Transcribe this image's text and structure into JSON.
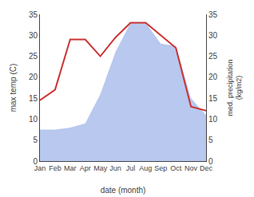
{
  "chart_data": {
    "type": "line",
    "xlabel": "date (month)",
    "ylabel": "max temp (C)",
    "y2label": "med. precipitation\n(kg/m2)",
    "categories": [
      "Jan",
      "Feb",
      "Mar",
      "Apr",
      "May",
      "Jun",
      "Jul",
      "Aug",
      "Sep",
      "Oct",
      "Nov",
      "Dec"
    ],
    "series": [
      {
        "type": "area",
        "axis": "y2",
        "color": "#b8c8ee",
        "values": [
          7.5,
          7.5,
          8.0,
          9.0,
          16.0,
          26.0,
          33.0,
          33.0,
          28.0,
          27.5,
          15.0,
          11.0
        ]
      },
      {
        "type": "line",
        "axis": "y",
        "color": "#cc3333",
        "values": [
          14.5,
          17.0,
          29.0,
          29.0,
          25.0,
          29.5,
          33.0,
          33.0,
          30.0,
          27.0,
          13.0,
          12.0
        ]
      }
    ],
    "ylim": [
      0,
      35
    ],
    "yticks": [
      0,
      5,
      10,
      15,
      20,
      25,
      30,
      35
    ],
    "y2lim": [
      0,
      35
    ],
    "y2ticks": [
      0,
      5,
      10,
      15,
      20,
      25,
      30,
      35
    ],
    "grid": false
  }
}
